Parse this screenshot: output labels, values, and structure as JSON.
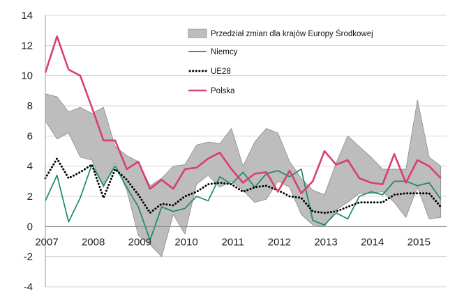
{
  "chart_data": {
    "type": "line",
    "title": "",
    "xlabel": "",
    "ylabel": "",
    "ylim": [
      -4,
      14
    ],
    "yticks": [
      -4,
      -2,
      0,
      2,
      4,
      6,
      8,
      10,
      12,
      14
    ],
    "x_tick_labels": [
      "2007",
      "2008",
      "2009",
      "2010",
      "2011",
      "2012",
      "2013",
      "2014",
      "2015"
    ],
    "x_range": [
      2007,
      2015.625
    ],
    "grid": "horizontal",
    "legend_position": "top-right",
    "x": [
      2007.0,
      2007.25,
      2007.5,
      2007.75,
      2008.0,
      2008.25,
      2008.5,
      2008.75,
      2009.0,
      2009.25,
      2009.5,
      2009.75,
      2010.0,
      2010.25,
      2010.5,
      2010.75,
      2011.0,
      2011.25,
      2011.5,
      2011.75,
      2012.0,
      2012.25,
      2012.5,
      2012.75,
      2013.0,
      2013.25,
      2013.5,
      2013.75,
      2014.0,
      2014.25,
      2014.5,
      2014.75,
      2015.0,
      2015.25,
      2015.5
    ],
    "band": {
      "name": "Przedział zmian dla krajów Europy Środkowej",
      "color": "#bdbdbd",
      "upper": [
        8.8,
        8.6,
        7.6,
        7.9,
        7.5,
        7.9,
        5.3,
        4.7,
        4.3,
        2.7,
        3.2,
        4.0,
        4.1,
        5.4,
        5.6,
        5.5,
        6.5,
        4.0,
        5.6,
        6.5,
        6.2,
        4.3,
        3.2,
        2.4,
        2.1,
        4.2,
        6.0,
        5.3,
        4.6,
        3.8,
        3.8,
        3.8,
        8.4,
        4.6,
        4.0
      ],
      "lower": [
        7.0,
        5.8,
        6.2,
        4.6,
        4.4,
        2.6,
        4.2,
        2.4,
        -0.6,
        -1.2,
        -2.0,
        0.8,
        -0.5,
        2.8,
        3.4,
        2.6,
        3.0,
        2.4,
        1.6,
        1.8,
        3.0,
        2.6,
        0.8,
        0.1,
        0.0,
        1.1,
        1.6,
        2.2,
        2.2,
        2.3,
        1.6,
        0.6,
        2.6,
        0.5,
        0.6
      ]
    },
    "series": [
      {
        "name": "Niemcy",
        "color": "#1e8a5e",
        "style": "solid",
        "values": [
          1.7,
          3.4,
          0.3,
          1.9,
          4.1,
          2.7,
          4.0,
          2.6,
          1.3,
          -0.9,
          1.3,
          1.0,
          1.2,
          2.0,
          1.7,
          3.3,
          2.8,
          3.6,
          2.6,
          3.5,
          3.7,
          3.3,
          3.8,
          0.4,
          0.1,
          0.9,
          0.5,
          2.0,
          2.3,
          2.1,
          3.0,
          3.0,
          2.7,
          2.9,
          1.8
        ]
      },
      {
        "name": "UE28",
        "color": "#000000",
        "style": "dotted",
        "values": [
          3.2,
          4.5,
          3.2,
          3.6,
          4.1,
          1.9,
          3.8,
          3.1,
          2.1,
          0.9,
          1.5,
          1.4,
          2.0,
          2.3,
          2.8,
          2.9,
          2.8,
          2.3,
          2.6,
          2.7,
          2.4,
          2.0,
          1.9,
          1.0,
          0.9,
          1.0,
          1.3,
          1.6,
          1.6,
          1.6,
          2.1,
          2.2,
          2.2,
          2.2,
          1.3
        ]
      },
      {
        "name": "Polska",
        "color": "#d9406a",
        "style": "solid",
        "values": [
          10.2,
          12.6,
          10.4,
          10.0,
          7.9,
          5.7,
          5.7,
          3.8,
          4.3,
          2.5,
          3.1,
          2.5,
          3.8,
          3.9,
          4.5,
          4.9,
          3.8,
          2.9,
          3.5,
          3.6,
          2.3,
          3.7,
          2.2,
          3.0,
          5.0,
          4.1,
          4.4,
          3.2,
          2.9,
          2.8,
          4.8,
          2.9,
          4.4,
          4.0,
          3.2
        ]
      }
    ]
  }
}
